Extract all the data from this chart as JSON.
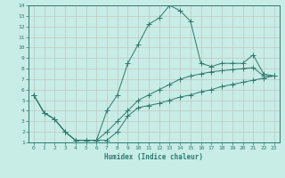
{
  "xlabel": "Humidex (Indice chaleur)",
  "ylabel": "",
  "background_color": "#c8ece6",
  "grid_color": "#b0d8d2",
  "line_color": "#2d7a6e",
  "xlim": [
    -0.5,
    23.5
  ],
  "ylim": [
    1,
    14
  ],
  "xticks": [
    0,
    1,
    2,
    3,
    4,
    5,
    6,
    7,
    8,
    9,
    10,
    11,
    12,
    13,
    14,
    15,
    16,
    17,
    18,
    19,
    20,
    21,
    22,
    23
  ],
  "yticks": [
    1,
    2,
    3,
    4,
    5,
    6,
    7,
    8,
    9,
    10,
    11,
    12,
    13,
    14
  ],
  "line1_x": [
    0,
    1,
    2,
    3,
    4,
    5,
    6,
    7,
    8,
    9,
    10,
    11,
    12,
    13,
    14,
    15,
    16,
    17,
    18,
    19,
    20,
    21,
    22,
    23
  ],
  "line1_y": [
    5.5,
    3.8,
    3.2,
    2.0,
    1.2,
    1.2,
    1.2,
    1.2,
    2.0,
    3.5,
    4.3,
    4.5,
    4.7,
    5.0,
    5.3,
    5.5,
    5.8,
    6.0,
    6.3,
    6.5,
    6.7,
    6.9,
    7.1,
    7.3
  ],
  "line2_x": [
    0,
    1,
    2,
    3,
    4,
    5,
    6,
    7,
    8,
    9,
    10,
    11,
    12,
    13,
    14,
    15,
    16,
    17,
    18,
    19,
    20,
    21,
    22,
    23
  ],
  "line2_y": [
    5.5,
    3.8,
    3.2,
    2.0,
    1.2,
    1.2,
    1.2,
    4.0,
    5.5,
    8.5,
    10.3,
    12.2,
    12.8,
    14.0,
    13.5,
    12.5,
    8.5,
    8.2,
    8.5,
    8.5,
    8.5,
    9.3,
    7.5,
    7.3
  ],
  "line3_x": [
    0,
    1,
    2,
    3,
    4,
    5,
    6,
    7,
    8,
    9,
    10,
    11,
    12,
    13,
    14,
    15,
    16,
    17,
    18,
    19,
    20,
    21,
    22,
    23
  ],
  "line3_y": [
    5.5,
    3.8,
    3.2,
    2.0,
    1.2,
    1.2,
    1.2,
    2.0,
    3.0,
    4.0,
    5.0,
    5.5,
    6.0,
    6.5,
    7.0,
    7.3,
    7.5,
    7.7,
    7.8,
    7.9,
    8.0,
    8.1,
    7.3,
    7.3
  ]
}
